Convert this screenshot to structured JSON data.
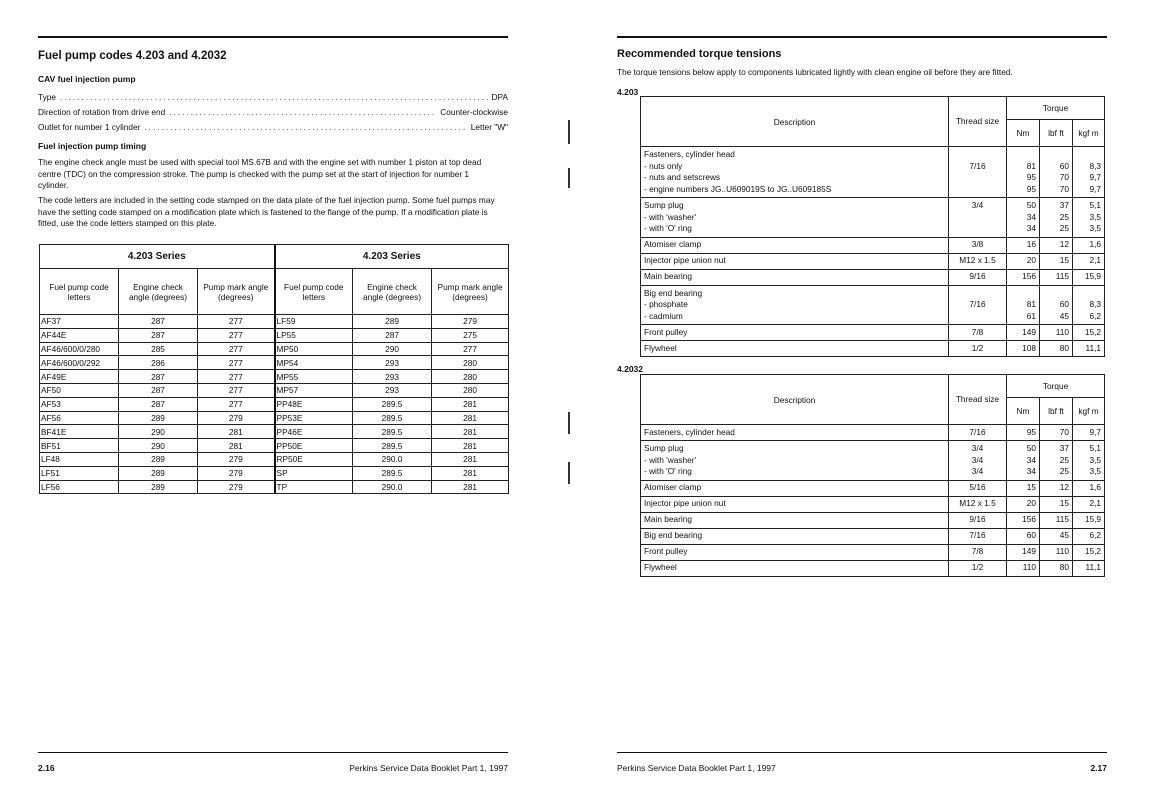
{
  "left": {
    "title": "Fuel pump codes 4.203 and 4.2032",
    "cav_heading": "CAV fuel injection pump",
    "specs": [
      {
        "label": "Type",
        "value": "DPA"
      },
      {
        "label": "Direction of rotation from drive end",
        "value": "Counter-clockwise"
      },
      {
        "label": "Outlet for number 1 cylinder",
        "value": "Letter \"W\""
      }
    ],
    "timing_heading": "Fuel injection pump timing",
    "para1": "The engine check angle must be used with special tool MS.67B and with the engine set with number 1 piston at top dead centre (TDC) on the compression stroke. The pump is checked with the pump set at the start of injection for number 1 cylinder.",
    "para2": "The code letters are included in the setting code stamped on the data plate of the fuel injection pump. Some fuel pumps may have the setting code stamped on a modification plate which is fastened to the flange of the pump. If a modification plate is fitted, use the code letters stamped on this plate.",
    "table": {
      "series_left": "4.203 Series",
      "series_right": "4.203 Series",
      "headers": [
        "Fuel pump code letters",
        "Engine check angle (degrees)",
        "Pump mark angle (degrees)"
      ],
      "rows_left": [
        [
          "AF37",
          "287",
          "277"
        ],
        [
          "AF44E",
          "287",
          "277"
        ],
        [
          "AF46/600/0/280",
          "285",
          "277"
        ],
        [
          "AF46/600/0/292",
          "286",
          "277"
        ],
        [
          "AF49E",
          "287",
          "277"
        ],
        [
          "AF50",
          "287",
          "277"
        ],
        [
          "AF53",
          "287",
          "277"
        ],
        [
          "AF56",
          "289",
          "279"
        ],
        [
          "BF41E",
          "290",
          "281"
        ],
        [
          "BF51",
          "290",
          "281"
        ],
        [
          "LF48",
          "289",
          "279"
        ],
        [
          "LF51",
          "289",
          "279"
        ],
        [
          "LF56",
          "289",
          "279"
        ]
      ],
      "rows_right": [
        [
          "LF59",
          "289",
          "279"
        ],
        [
          "LP55",
          "287",
          "275"
        ],
        [
          "MP50",
          "290",
          "277"
        ],
        [
          "MP54",
          "293",
          "280"
        ],
        [
          "MP55",
          "293",
          "280"
        ],
        [
          "MP57",
          "293",
          "280"
        ],
        [
          "PP48E",
          "289.5",
          "281"
        ],
        [
          "PP53E",
          "289.5",
          "281"
        ],
        [
          "PP46E",
          "289.5",
          "281"
        ],
        [
          "PP50E",
          "289.5",
          "281"
        ],
        [
          "RP50E",
          "290.0",
          "281"
        ],
        [
          "SP",
          "289.5",
          "281"
        ],
        [
          "TP",
          "290.0",
          "281"
        ]
      ]
    },
    "page_number": "2.16",
    "footer": "Perkins Service Data Booklet Part 1, 1997"
  },
  "right": {
    "title": "Recommended torque tensions",
    "intro": "The torque tensions below apply to components lubricated lightly with clean engine oil before they are fitted.",
    "headers": {
      "description": "Description",
      "thread": "Thread size",
      "torque": "Torque",
      "nm": "Nm",
      "lbf": "lbf ft",
      "kgf": "kgf m"
    },
    "tables": [
      {
        "label": "4.203",
        "rows": [
          {
            "desc": [
              "Fasteners, cylinder head",
              "- nuts only",
              "- nuts and setscrews",
              "- engine numbers JG..U609019S to JG..U609185S"
            ],
            "thread": [
              "",
              "7/16",
              "",
              ""
            ],
            "nm": [
              "",
              "81",
              "95",
              "95"
            ],
            "lbf": [
              "",
              "60",
              "70",
              "70"
            ],
            "kgf": [
              "",
              "8,3",
              "9,7",
              "9,7"
            ]
          },
          {
            "desc": [
              "Sump plug",
              "- with 'washer'",
              "- with 'O' ring"
            ],
            "thread": [
              "3/4",
              "",
              ""
            ],
            "nm": [
              "50",
              "34",
              "34"
            ],
            "lbf": [
              "37",
              "25",
              "25"
            ],
            "kgf": [
              "5,1",
              "3,5",
              "3,5"
            ]
          },
          {
            "desc": [
              "Atomiser clamp"
            ],
            "thread": [
              "3/8"
            ],
            "nm": [
              "16"
            ],
            "lbf": [
              "12"
            ],
            "kgf": [
              "1,6"
            ]
          },
          {
            "desc": [
              "Injector pipe union nut"
            ],
            "thread": [
              "M12 x 1.5"
            ],
            "nm": [
              "20"
            ],
            "lbf": [
              "15"
            ],
            "kgf": [
              "2,1"
            ]
          },
          {
            "desc": [
              "Main bearing"
            ],
            "thread": [
              "9/16"
            ],
            "nm": [
              "156"
            ],
            "lbf": [
              "115"
            ],
            "kgf": [
              "15,9"
            ]
          },
          {
            "desc": [
              "Big end bearing",
              "- phosphate",
              "- cadmium"
            ],
            "thread": [
              "",
              "7/16",
              ""
            ],
            "nm": [
              "",
              "81",
              "61"
            ],
            "lbf": [
              "",
              "60",
              "45"
            ],
            "kgf": [
              "",
              "8,3",
              "6,2"
            ]
          },
          {
            "desc": [
              "Front pulley"
            ],
            "thread": [
              "7/8"
            ],
            "nm": [
              "149"
            ],
            "lbf": [
              "110"
            ],
            "kgf": [
              "15,2"
            ]
          },
          {
            "desc": [
              "Flywheel"
            ],
            "thread": [
              "1/2"
            ],
            "nm": [
              "108"
            ],
            "lbf": [
              "80"
            ],
            "kgf": [
              "11,1"
            ]
          }
        ]
      },
      {
        "label": "4.2032",
        "rows": [
          {
            "desc": [
              "Fasteners, cylinder head"
            ],
            "thread": [
              "7/16"
            ],
            "nm": [
              "95"
            ],
            "lbf": [
              "70"
            ],
            "kgf": [
              "9,7"
            ]
          },
          {
            "desc": [
              "Sump plug",
              "- with 'washer'",
              "- with 'O' ring"
            ],
            "thread": [
              "3/4",
              "3/4",
              "3/4"
            ],
            "nm": [
              "50",
              "34",
              "34"
            ],
            "lbf": [
              "37",
              "25",
              "25"
            ],
            "kgf": [
              "5,1",
              "3,5",
              "3,5"
            ]
          },
          {
            "desc": [
              "Atomiser clamp"
            ],
            "thread": [
              "5/16"
            ],
            "nm": [
              "15"
            ],
            "lbf": [
              "12"
            ],
            "kgf": [
              "1,6"
            ]
          },
          {
            "desc": [
              "Injector pipe union nut"
            ],
            "thread": [
              "M12 x 1.5"
            ],
            "nm": [
              "20"
            ],
            "lbf": [
              "15"
            ],
            "kgf": [
              "2,1"
            ]
          },
          {
            "desc": [
              "Main bearing"
            ],
            "thread": [
              "9/16"
            ],
            "nm": [
              "156"
            ],
            "lbf": [
              "115"
            ],
            "kgf": [
              "15,9"
            ]
          },
          {
            "desc": [
              "Big end bearing"
            ],
            "thread": [
              "7/16"
            ],
            "nm": [
              "60"
            ],
            "lbf": [
              "45"
            ],
            "kgf": [
              "6,2"
            ]
          },
          {
            "desc": [
              "Front pulley"
            ],
            "thread": [
              "7/8"
            ],
            "nm": [
              "149"
            ],
            "lbf": [
              "110"
            ],
            "kgf": [
              "15,2"
            ]
          },
          {
            "desc": [
              "Flywheel"
            ],
            "thread": [
              "1/2"
            ],
            "nm": [
              "110"
            ],
            "lbf": [
              "80"
            ],
            "kgf": [
              "11,1"
            ]
          }
        ]
      }
    ],
    "page_number": "2.17",
    "footer": "Perkins Service Data Booklet Part 1, 1997"
  }
}
